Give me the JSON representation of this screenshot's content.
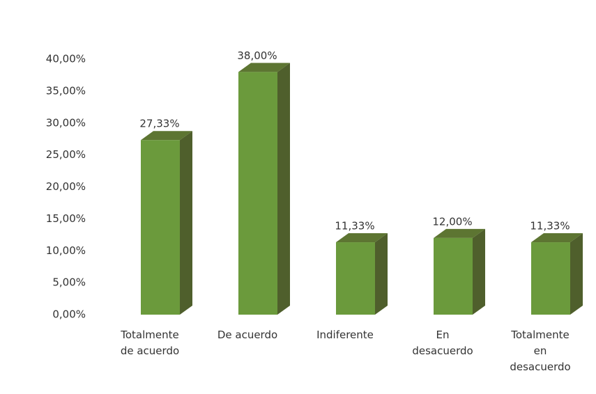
{
  "chart_data": {
    "type": "bar3d",
    "categories": [
      "Totalmente de acuerdo",
      "De acuerdo",
      "Indiferente",
      "En desacuerdo",
      "Totalmente en desacuerdo"
    ],
    "values": [
      27.33,
      38,
      11.33,
      12,
      11.33
    ],
    "value_labels": [
      "27,33%",
      "38,00%",
      "11,33%",
      "12,00%",
      "11,33%"
    ],
    "color": "#6b9a3c",
    "ylim": [
      0,
      40
    ],
    "yticks": [
      {
        "value": 0,
        "label": "0,00%"
      },
      {
        "value": 5,
        "label": "5,00%"
      },
      {
        "value": 10,
        "label": "10,00%"
      },
      {
        "value": 15,
        "label": "15,00%"
      },
      {
        "value": 20,
        "label": "20,00%"
      },
      {
        "value": 25,
        "label": "25,00%"
      },
      {
        "value": 30,
        "label": "30,00%"
      },
      {
        "value": 35,
        "label": "35,00%"
      },
      {
        "value": 40,
        "label": "40,00%"
      }
    ],
    "grid": false
  }
}
